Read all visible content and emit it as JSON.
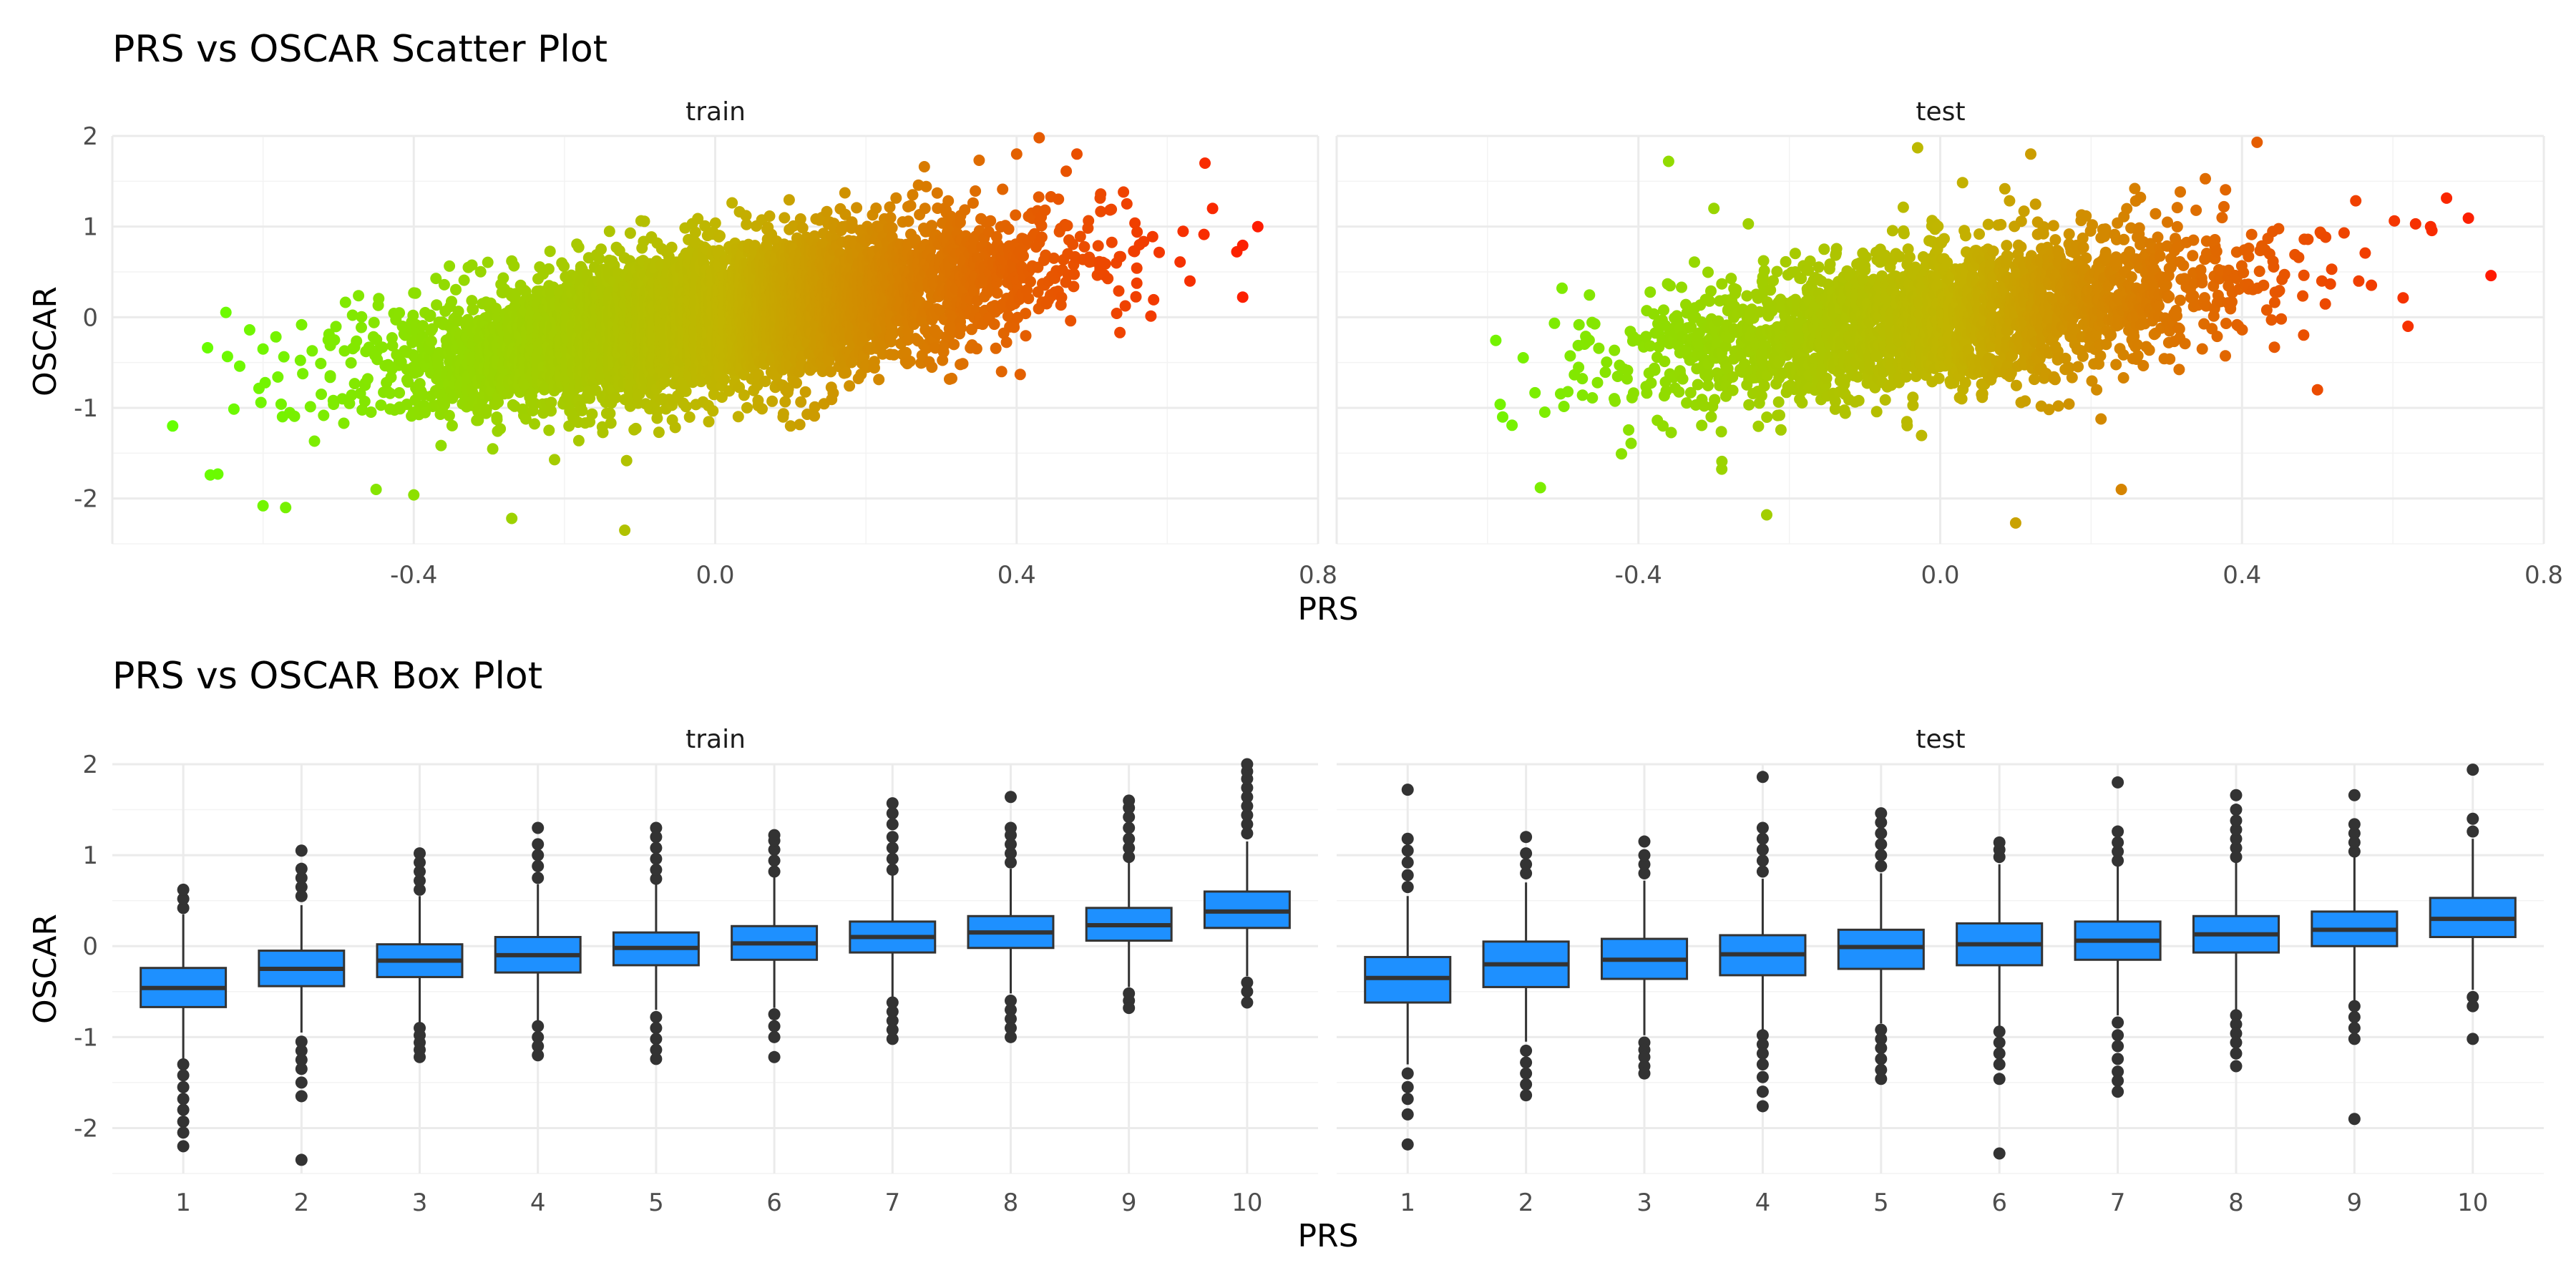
{
  "chart_data": [
    {
      "type": "scatter",
      "title": "PRS vs OSCAR Scatter Plot",
      "xlabel": "PRS",
      "ylabel": "OSCAR",
      "xlim": [
        -0.8,
        0.8
      ],
      "ylim": [
        -2.5,
        2
      ],
      "x_ticks": [
        "-0.4",
        "0.0",
        "0.4",
        "0.8"
      ],
      "y_ticks": [
        "-2",
        "-1",
        "0",
        "1",
        "2"
      ],
      "grid": true,
      "color_scale": {
        "low": "#66ff00",
        "mid": "#c2b400",
        "high": "#ff1a00",
        "domain": [
          -0.7,
          0.73
        ]
      },
      "facets": [
        {
          "label": "train",
          "trend": {
            "slope": 1.42,
            "intercept": 0.0,
            "x_mean": 0.0,
            "x_sd": 0.2,
            "resid_sd": 0.38,
            "n": 6000
          },
          "extreme_points": [
            {
              "x": -0.72,
              "y": -1.2
            },
            {
              "x": -0.67,
              "y": -1.74
            },
            {
              "x": -0.66,
              "y": -1.73
            },
            {
              "x": -0.6,
              "y": -2.08
            },
            {
              "x": -0.57,
              "y": -2.1
            },
            {
              "x": -0.6,
              "y": -0.35
            },
            {
              "x": -0.45,
              "y": -1.9
            },
            {
              "x": -0.4,
              "y": -1.96
            },
            {
              "x": -0.27,
              "y": -2.22
            },
            {
              "x": -0.12,
              "y": -2.35
            },
            {
              "x": -0.27,
              "y": 0.62
            },
            {
              "x": 0.43,
              "y": 1.98
            },
            {
              "x": 0.4,
              "y": 1.8
            },
            {
              "x": 0.48,
              "y": 1.8
            },
            {
              "x": 0.65,
              "y": 1.7
            },
            {
              "x": 0.72,
              "y": 1.0
            },
            {
              "x": 0.66,
              "y": 1.2
            },
            {
              "x": 0.63,
              "y": 0.4
            },
            {
              "x": 0.38,
              "y": -0.6
            },
            {
              "x": 0.1,
              "y": -1.2
            }
          ]
        },
        {
          "label": "test",
          "trend": {
            "slope": 1.2,
            "intercept": 0.0,
            "x_mean": 0.0,
            "x_sd": 0.2,
            "resid_sd": 0.4,
            "n": 2500
          },
          "extreme_points": [
            {
              "x": 0.73,
              "y": 0.46
            },
            {
              "x": 0.65,
              "y": 1.0
            },
            {
              "x": 0.63,
              "y": 1.03
            },
            {
              "x": -0.53,
              "y": -1.88
            },
            {
              "x": -0.58,
              "y": -1.1
            },
            {
              "x": -0.36,
              "y": 1.72
            },
            {
              "x": -0.03,
              "y": 1.87
            },
            {
              "x": 0.12,
              "y": 1.8
            },
            {
              "x": 0.42,
              "y": 1.93
            },
            {
              "x": -0.23,
              "y": -2.18
            },
            {
              "x": 0.1,
              "y": -2.27
            },
            {
              "x": 0.24,
              "y": -1.9
            },
            {
              "x": 0.62,
              "y": -0.1
            },
            {
              "x": -0.3,
              "y": 1.2
            },
            {
              "x": 0.5,
              "y": -0.8
            }
          ]
        }
      ]
    },
    {
      "type": "box",
      "title": "PRS vs OSCAR Box Plot",
      "xlabel": "PRS",
      "ylabel": "OSCAR",
      "ylim": [
        -2.5,
        2
      ],
      "categories": [
        "1",
        "2",
        "3",
        "4",
        "5",
        "6",
        "7",
        "8",
        "9",
        "10"
      ],
      "y_ticks": [
        "-2",
        "-1",
        "0",
        "1",
        "2"
      ],
      "grid": true,
      "box_color": "#1e90ff",
      "facets": [
        {
          "label": "train",
          "boxes": [
            {
              "q1": -0.67,
              "median": -0.46,
              "q3": -0.24,
              "low": -1.25,
              "high": 0.35,
              "outliers_low": [
                -1.3,
                -1.42,
                -1.55,
                -1.68,
                -1.8,
                -1.93,
                -2.05,
                -2.2
              ],
              "outliers_high": [
                0.42,
                0.52,
                0.62
              ]
            },
            {
              "q1": -0.44,
              "median": -0.25,
              "q3": -0.05,
              "low": -0.95,
              "high": 0.45,
              "outliers_low": [
                -1.05,
                -1.15,
                -1.25,
                -1.35,
                -1.5,
                -1.65,
                -2.35
              ],
              "outliers_high": [
                0.55,
                0.65,
                0.75,
                0.85,
                1.05
              ]
            },
            {
              "q1": -0.34,
              "median": -0.16,
              "q3": 0.02,
              "low": -0.85,
              "high": 0.55,
              "outliers_low": [
                -0.9,
                -0.98,
                -1.06,
                -1.14,
                -1.22
              ],
              "outliers_high": [
                0.62,
                0.72,
                0.82,
                0.92,
                1.02
              ]
            },
            {
              "q1": -0.29,
              "median": -0.1,
              "q3": 0.1,
              "low": -0.82,
              "high": 0.68,
              "outliers_low": [
                -0.88,
                -1.0,
                -1.1,
                -1.2
              ],
              "outliers_high": [
                0.75,
                0.88,
                1.0,
                1.12,
                1.3
              ]
            },
            {
              "q1": -0.21,
              "median": -0.02,
              "q3": 0.15,
              "low": -0.7,
              "high": 0.68,
              "outliers_low": [
                -0.78,
                -0.9,
                -1.02,
                -1.14,
                -1.24
              ],
              "outliers_high": [
                0.74,
                0.84,
                0.96,
                1.08,
                1.2,
                1.3
              ]
            },
            {
              "q1": -0.15,
              "median": 0.03,
              "q3": 0.22,
              "low": -0.68,
              "high": 0.76,
              "outliers_low": [
                -0.75,
                -0.88,
                -1.0,
                -1.22
              ],
              "outliers_high": [
                0.82,
                0.94,
                1.06,
                1.16,
                1.22
              ]
            },
            {
              "q1": -0.07,
              "median": 0.1,
              "q3": 0.27,
              "low": -0.56,
              "high": 0.78,
              "outliers_low": [
                -0.62,
                -0.72,
                -0.82,
                -0.92,
                -1.02
              ],
              "outliers_high": [
                0.84,
                0.96,
                1.08,
                1.2,
                1.34,
                1.46,
                1.57
              ]
            },
            {
              "q1": -0.02,
              "median": 0.15,
              "q3": 0.33,
              "low": -0.52,
              "high": 0.85,
              "outliers_low": [
                -0.6,
                -0.7,
                -0.8,
                -0.9,
                -1.0
              ],
              "outliers_high": [
                0.92,
                1.02,
                1.12,
                1.22,
                1.3,
                1.64
              ]
            },
            {
              "q1": 0.06,
              "median": 0.23,
              "q3": 0.42,
              "low": -0.45,
              "high": 0.92,
              "outliers_low": [
                -0.52,
                -0.6,
                -0.68
              ],
              "outliers_high": [
                0.98,
                1.08,
                1.18,
                1.3,
                1.42,
                1.52,
                1.6
              ]
            },
            {
              "q1": 0.2,
              "median": 0.38,
              "q3": 0.6,
              "low": -0.33,
              "high": 1.15,
              "outliers_low": [
                -0.4,
                -0.5,
                -0.62
              ],
              "outliers_high": [
                1.24,
                1.34,
                1.44,
                1.54,
                1.64,
                1.74,
                1.84,
                1.92,
                2.0
              ]
            }
          ]
        },
        {
          "label": "test",
          "boxes": [
            {
              "q1": -0.62,
              "median": -0.35,
              "q3": -0.12,
              "low": -1.3,
              "high": 0.55,
              "outliers_low": [
                -1.4,
                -1.55,
                -1.68,
                -1.85,
                -2.18
              ],
              "outliers_high": [
                0.65,
                0.78,
                0.92,
                1.05,
                1.18,
                1.72
              ]
            },
            {
              "q1": -0.45,
              "median": -0.2,
              "q3": 0.05,
              "low": -1.05,
              "high": 0.7,
              "outliers_low": [
                -1.15,
                -1.28,
                -1.4,
                -1.52,
                -1.64
              ],
              "outliers_high": [
                0.8,
                0.9,
                1.02,
                1.2
              ]
            },
            {
              "q1": -0.36,
              "median": -0.15,
              "q3": 0.08,
              "low": -0.98,
              "high": 0.72,
              "outliers_low": [
                -1.06,
                -1.14,
                -1.22,
                -1.32,
                -1.4
              ],
              "outliers_high": [
                0.8,
                0.9,
                1.0,
                1.15
              ]
            },
            {
              "q1": -0.32,
              "median": -0.09,
              "q3": 0.12,
              "low": -0.92,
              "high": 0.74,
              "outliers_low": [
                -0.98,
                -1.08,
                -1.18,
                -1.3,
                -1.44,
                -1.6,
                -1.76
              ],
              "outliers_high": [
                0.82,
                0.94,
                1.06,
                1.18,
                1.3,
                1.86
              ]
            },
            {
              "q1": -0.25,
              "median": -0.01,
              "q3": 0.18,
              "low": -0.85,
              "high": 0.8,
              "outliers_low": [
                -0.92,
                -1.02,
                -1.12,
                -1.24,
                -1.36,
                -1.46
              ],
              "outliers_high": [
                0.88,
                1.0,
                1.12,
                1.24,
                1.36,
                1.46
              ]
            },
            {
              "q1": -0.21,
              "median": 0.02,
              "q3": 0.25,
              "low": -0.88,
              "high": 0.9,
              "outliers_low": [
                -0.94,
                -1.06,
                -1.18,
                -1.3,
                -1.46,
                -2.28
              ],
              "outliers_high": [
                0.98,
                1.06,
                1.14
              ]
            },
            {
              "q1": -0.15,
              "median": 0.06,
              "q3": 0.27,
              "low": -0.76,
              "high": 0.88,
              "outliers_low": [
                -0.84,
                -0.98,
                -1.1,
                -1.24,
                -1.38,
                -1.48,
                -1.6
              ],
              "outliers_high": [
                0.94,
                1.04,
                1.14,
                1.26,
                1.8
              ]
            },
            {
              "q1": -0.07,
              "median": 0.13,
              "q3": 0.33,
              "low": -0.7,
              "high": 0.92,
              "outliers_low": [
                -0.76,
                -0.86,
                -0.96,
                -1.06,
                -1.18,
                -1.32
              ],
              "outliers_high": [
                0.98,
                1.08,
                1.18,
                1.28,
                1.38,
                1.5,
                1.66
              ]
            },
            {
              "q1": 0.0,
              "median": 0.18,
              "q3": 0.38,
              "low": -0.6,
              "high": 0.98,
              "outliers_low": [
                -0.66,
                -0.78,
                -0.9,
                -1.02,
                -1.9
              ],
              "outliers_high": [
                1.04,
                1.14,
                1.24,
                1.34,
                1.66
              ]
            },
            {
              "q1": 0.1,
              "median": 0.3,
              "q3": 0.53,
              "low": -0.48,
              "high": 1.18,
              "outliers_low": [
                -0.56,
                -0.66,
                -1.02
              ],
              "outliers_high": [
                1.26,
                1.4,
                1.94
              ]
            }
          ]
        }
      ]
    }
  ]
}
